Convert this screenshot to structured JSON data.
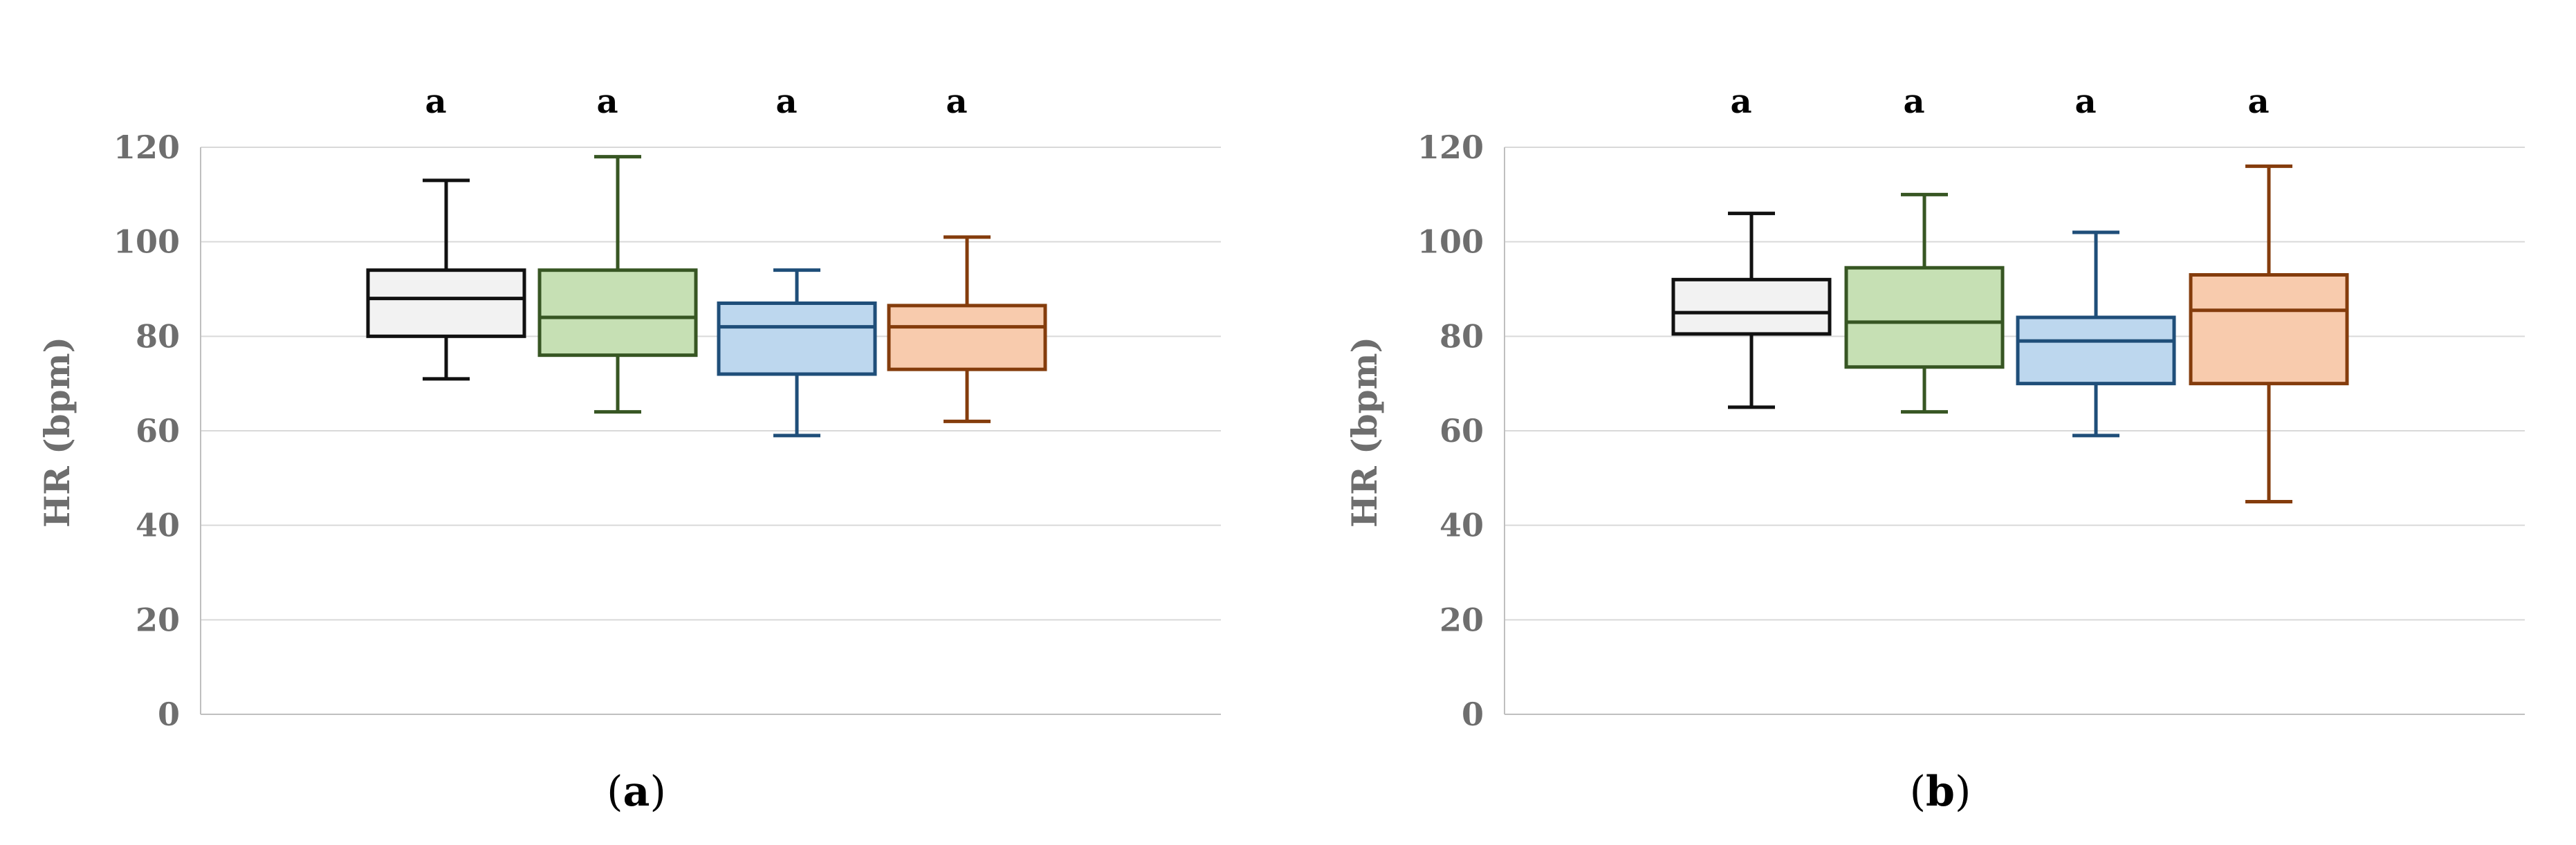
{
  "chart_data": [
    {
      "type": "box",
      "panel_label": "a",
      "ylabel": "HR (bpm)",
      "ylim": [
        0,
        120
      ],
      "yticks": [
        "0",
        "20",
        "40",
        "60",
        "80",
        "100",
        "120"
      ],
      "grid": true,
      "series": [
        {
          "whisker_low": 71,
          "q1": 80,
          "median": 88,
          "q3": 94,
          "whisker_high": 113,
          "fill": "#f2f2f2",
          "stroke": "#111111",
          "sig_label": "a"
        },
        {
          "whisker_low": 64,
          "q1": 76,
          "median": 84,
          "q3": 94,
          "whisker_high": 118,
          "fill": "#c6e0b4",
          "stroke": "#375623",
          "sig_label": "a"
        },
        {
          "whisker_low": 59,
          "q1": 72,
          "median": 82,
          "q3": 87,
          "whisker_high": 94,
          "fill": "#bdd7ee",
          "stroke": "#1f4e79",
          "sig_label": "a"
        },
        {
          "whisker_low": 62,
          "q1": 73,
          "median": 82,
          "q3": 86.5,
          "whisker_high": 101,
          "fill": "#f8cbad",
          "stroke": "#843c0c",
          "sig_label": "a"
        }
      ]
    },
    {
      "type": "box",
      "panel_label": "b",
      "ylabel": "HR (bpm)",
      "ylim": [
        0,
        120
      ],
      "yticks": [
        "0",
        "20",
        "40",
        "60",
        "80",
        "100",
        "120"
      ],
      "grid": true,
      "series": [
        {
          "whisker_low": 65,
          "q1": 80.5,
          "median": 85,
          "q3": 92,
          "whisker_high": 106,
          "fill": "#f2f2f2",
          "stroke": "#111111",
          "sig_label": "a"
        },
        {
          "whisker_low": 64,
          "q1": 73.5,
          "median": 83,
          "q3": 94.5,
          "whisker_high": 110,
          "fill": "#c6e0b4",
          "stroke": "#375623",
          "sig_label": "a"
        },
        {
          "whisker_low": 59,
          "q1": 70,
          "median": 79,
          "q3": 84,
          "whisker_high": 102,
          "fill": "#bdd7ee",
          "stroke": "#1f4e79",
          "sig_label": "a"
        },
        {
          "whisker_low": 45,
          "q1": 70,
          "median": 85.5,
          "q3": 93,
          "whisker_high": 116,
          "fill": "#f8cbad",
          "stroke": "#843c0c",
          "sig_label": "a"
        }
      ]
    }
  ],
  "colors": {
    "grid": "#d9d9d9",
    "axis": "#bfbfbf",
    "tick_text": "#6e6e6e"
  }
}
